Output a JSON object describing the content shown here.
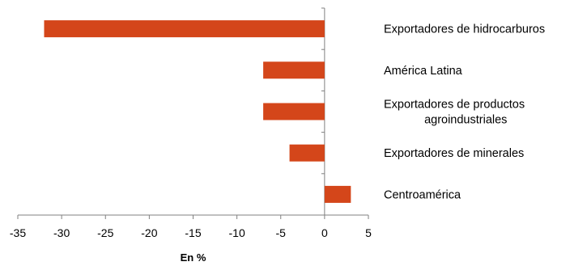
{
  "chart_data": {
    "type": "bar",
    "orientation": "horizontal",
    "categories": [
      [
        "Exportadores de hidrocarburos"
      ],
      [
        "América Latina"
      ],
      [
        "Exportadores de productos",
        "agroindustriales"
      ],
      [
        "Exportadores de minerales"
      ],
      [
        "Centroamérica"
      ]
    ],
    "values": [
      -32,
      -7,
      -7,
      -4,
      3
    ],
    "xlabel": "En %",
    "xlim": [
      -35,
      5
    ],
    "xticks": [
      -35,
      -30,
      -25,
      -20,
      -15,
      -10,
      -5,
      0,
      5
    ],
    "legend": "none",
    "grid": false,
    "colors": {
      "bar": "#d4461a",
      "axis": "#808080"
    }
  }
}
